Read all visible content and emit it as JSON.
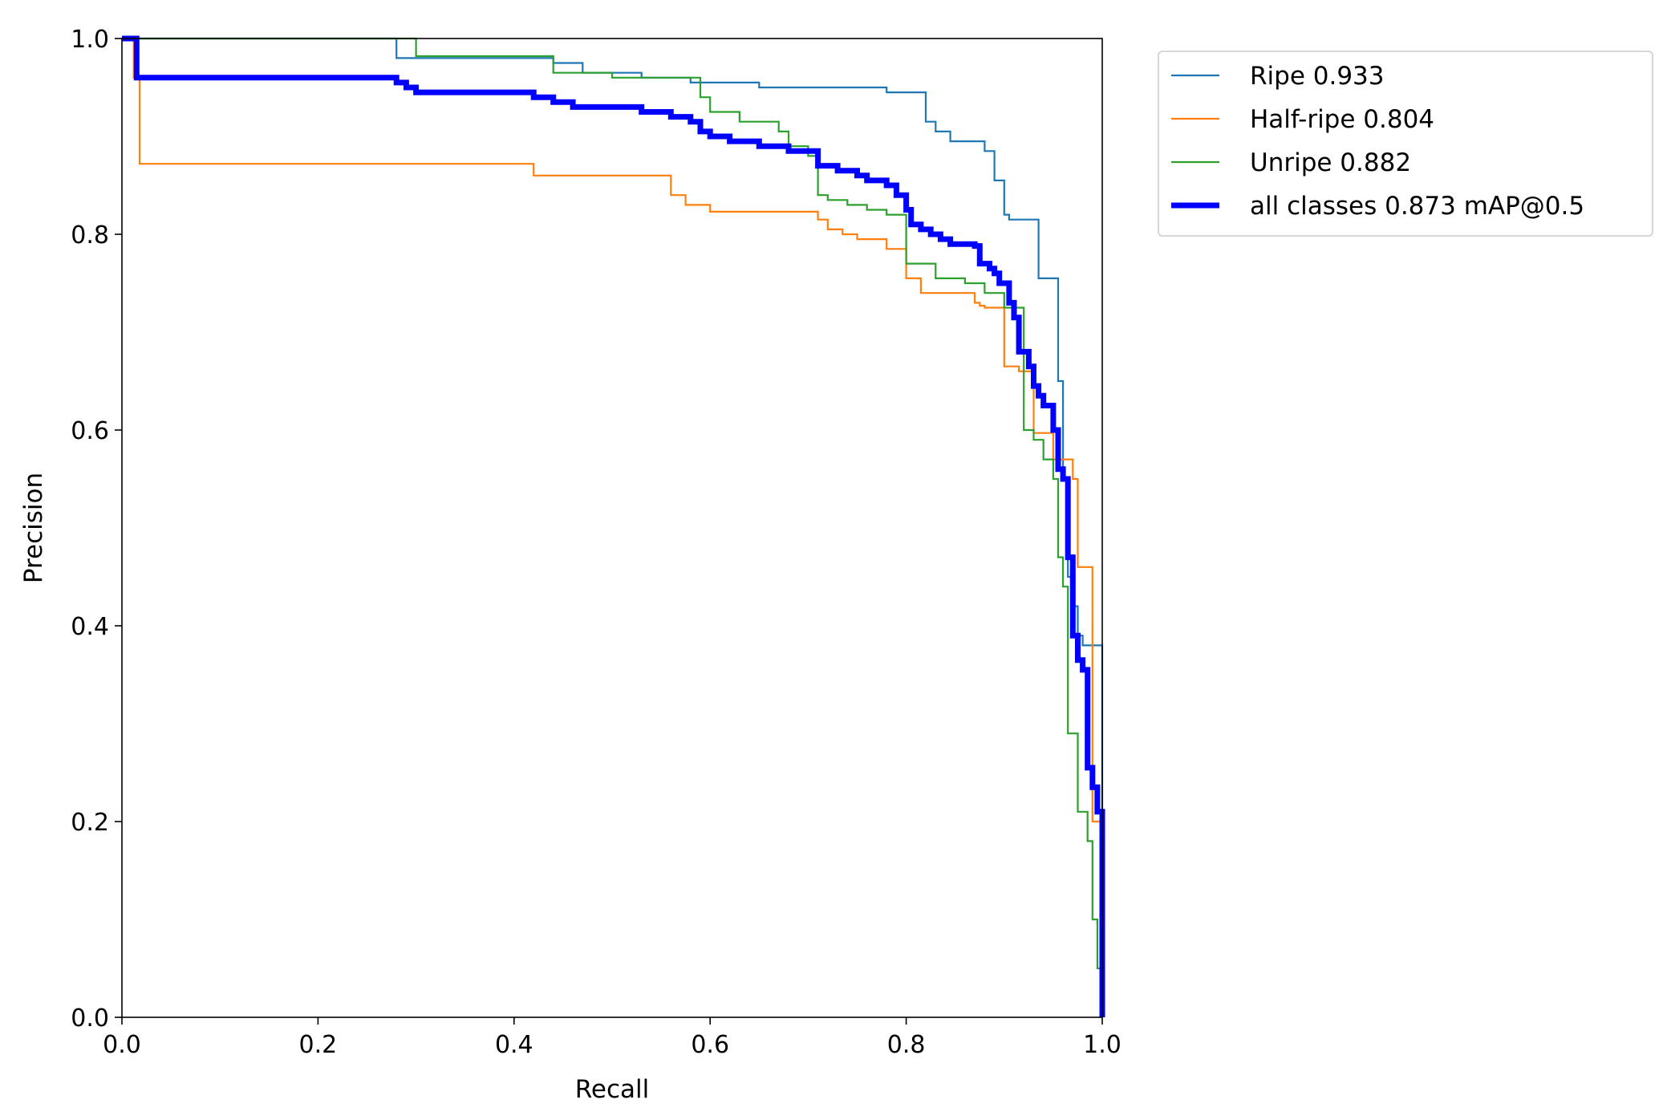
{
  "chart_data": {
    "type": "line",
    "title": "",
    "xlabel": "Recall",
    "ylabel": "Precision",
    "xlim": [
      0,
      1
    ],
    "ylim": [
      0,
      1
    ],
    "xticks": [
      "0.0",
      "0.2",
      "0.4",
      "0.6",
      "0.8",
      "1.0"
    ],
    "yticks": [
      "0.0",
      "0.2",
      "0.4",
      "0.6",
      "0.8",
      "1.0"
    ],
    "grid": false,
    "legend_position": "outside-top-right",
    "series": [
      {
        "name": "Ripe 0.933",
        "color": "#1f77b4",
        "width": "thin",
        "points": [
          [
            0,
            1.0
          ],
          [
            0.28,
            1.0
          ],
          [
            0.28,
            0.98
          ],
          [
            0.44,
            0.98
          ],
          [
            0.44,
            0.975
          ],
          [
            0.47,
            0.975
          ],
          [
            0.47,
            0.965
          ],
          [
            0.53,
            0.965
          ],
          [
            0.53,
            0.96
          ],
          [
            0.58,
            0.96
          ],
          [
            0.58,
            0.955
          ],
          [
            0.65,
            0.955
          ],
          [
            0.65,
            0.95
          ],
          [
            0.78,
            0.95
          ],
          [
            0.78,
            0.945
          ],
          [
            0.82,
            0.945
          ],
          [
            0.82,
            0.915
          ],
          [
            0.83,
            0.915
          ],
          [
            0.83,
            0.905
          ],
          [
            0.845,
            0.905
          ],
          [
            0.845,
            0.895
          ],
          [
            0.88,
            0.895
          ],
          [
            0.88,
            0.885
          ],
          [
            0.89,
            0.885
          ],
          [
            0.89,
            0.855
          ],
          [
            0.9,
            0.855
          ],
          [
            0.9,
            0.82
          ],
          [
            0.905,
            0.82
          ],
          [
            0.905,
            0.815
          ],
          [
            0.935,
            0.815
          ],
          [
            0.935,
            0.755
          ],
          [
            0.955,
            0.755
          ],
          [
            0.955,
            0.65
          ],
          [
            0.96,
            0.65
          ],
          [
            0.96,
            0.55
          ],
          [
            0.965,
            0.55
          ],
          [
            0.965,
            0.45
          ],
          [
            0.97,
            0.45
          ],
          [
            0.97,
            0.42
          ],
          [
            0.975,
            0.42
          ],
          [
            0.975,
            0.39
          ],
          [
            0.98,
            0.39
          ],
          [
            0.98,
            0.38
          ],
          [
            1.0,
            0.38
          ],
          [
            1.0,
            0.0
          ]
        ]
      },
      {
        "name": "Half-ripe 0.804",
        "color": "#ff7f0e",
        "width": "thin",
        "points": [
          [
            0,
            1.0
          ],
          [
            0.012,
            1.0
          ],
          [
            0.012,
            0.96
          ],
          [
            0.018,
            0.96
          ],
          [
            0.018,
            0.872
          ],
          [
            0.42,
            0.872
          ],
          [
            0.42,
            0.86
          ],
          [
            0.56,
            0.86
          ],
          [
            0.56,
            0.84
          ],
          [
            0.575,
            0.84
          ],
          [
            0.575,
            0.83
          ],
          [
            0.6,
            0.83
          ],
          [
            0.6,
            0.823
          ],
          [
            0.71,
            0.823
          ],
          [
            0.71,
            0.815
          ],
          [
            0.72,
            0.815
          ],
          [
            0.72,
            0.805
          ],
          [
            0.735,
            0.805
          ],
          [
            0.735,
            0.8
          ],
          [
            0.75,
            0.8
          ],
          [
            0.75,
            0.795
          ],
          [
            0.78,
            0.795
          ],
          [
            0.78,
            0.785
          ],
          [
            0.8,
            0.785
          ],
          [
            0.8,
            0.755
          ],
          [
            0.815,
            0.755
          ],
          [
            0.815,
            0.74
          ],
          [
            0.87,
            0.74
          ],
          [
            0.87,
            0.73
          ],
          [
            0.875,
            0.73
          ],
          [
            0.875,
            0.727
          ],
          [
            0.88,
            0.727
          ],
          [
            0.88,
            0.725
          ],
          [
            0.9,
            0.725
          ],
          [
            0.9,
            0.665
          ],
          [
            0.915,
            0.665
          ],
          [
            0.915,
            0.66
          ],
          [
            0.93,
            0.66
          ],
          [
            0.93,
            0.597
          ],
          [
            0.95,
            0.597
          ],
          [
            0.95,
            0.57
          ],
          [
            0.97,
            0.57
          ],
          [
            0.97,
            0.55
          ],
          [
            0.975,
            0.55
          ],
          [
            0.975,
            0.46
          ],
          [
            0.99,
            0.46
          ],
          [
            0.99,
            0.2
          ],
          [
            1.0,
            0.2
          ],
          [
            1.0,
            0.0
          ]
        ]
      },
      {
        "name": "Unripe 0.882",
        "color": "#2ca02c",
        "width": "thin",
        "points": [
          [
            0,
            1.0
          ],
          [
            0.3,
            1.0
          ],
          [
            0.3,
            0.982
          ],
          [
            0.44,
            0.982
          ],
          [
            0.44,
            0.965
          ],
          [
            0.5,
            0.965
          ],
          [
            0.5,
            0.96
          ],
          [
            0.59,
            0.96
          ],
          [
            0.59,
            0.94
          ],
          [
            0.6,
            0.94
          ],
          [
            0.6,
            0.925
          ],
          [
            0.63,
            0.925
          ],
          [
            0.63,
            0.915
          ],
          [
            0.67,
            0.915
          ],
          [
            0.67,
            0.905
          ],
          [
            0.68,
            0.905
          ],
          [
            0.68,
            0.89
          ],
          [
            0.7,
            0.89
          ],
          [
            0.7,
            0.88
          ],
          [
            0.71,
            0.88
          ],
          [
            0.71,
            0.84
          ],
          [
            0.72,
            0.84
          ],
          [
            0.72,
            0.835
          ],
          [
            0.74,
            0.835
          ],
          [
            0.74,
            0.83
          ],
          [
            0.76,
            0.83
          ],
          [
            0.76,
            0.825
          ],
          [
            0.78,
            0.825
          ],
          [
            0.78,
            0.82
          ],
          [
            0.8,
            0.82
          ],
          [
            0.8,
            0.805
          ],
          [
            0.8,
            0.77
          ],
          [
            0.83,
            0.77
          ],
          [
            0.83,
            0.755
          ],
          [
            0.86,
            0.755
          ],
          [
            0.86,
            0.75
          ],
          [
            0.88,
            0.75
          ],
          [
            0.88,
            0.74
          ],
          [
            0.9,
            0.74
          ],
          [
            0.9,
            0.725
          ],
          [
            0.92,
            0.725
          ],
          [
            0.92,
            0.6
          ],
          [
            0.93,
            0.6
          ],
          [
            0.93,
            0.59
          ],
          [
            0.94,
            0.59
          ],
          [
            0.94,
            0.57
          ],
          [
            0.95,
            0.57
          ],
          [
            0.95,
            0.55
          ],
          [
            0.955,
            0.55
          ],
          [
            0.955,
            0.47
          ],
          [
            0.96,
            0.47
          ],
          [
            0.96,
            0.44
          ],
          [
            0.965,
            0.44
          ],
          [
            0.965,
            0.29
          ],
          [
            0.975,
            0.29
          ],
          [
            0.975,
            0.21
          ],
          [
            0.985,
            0.21
          ],
          [
            0.985,
            0.18
          ],
          [
            0.99,
            0.18
          ],
          [
            0.99,
            0.1
          ],
          [
            0.995,
            0.1
          ],
          [
            0.995,
            0.05
          ],
          [
            1.0,
            0.05
          ],
          [
            1.0,
            0.0
          ]
        ]
      },
      {
        "name": "all classes 0.873 mAP@0.5",
        "color": "#0000ff",
        "width": "thick",
        "points": [
          [
            0,
            1.0
          ],
          [
            0.015,
            1.0
          ],
          [
            0.015,
            0.96
          ],
          [
            0.28,
            0.96
          ],
          [
            0.28,
            0.955
          ],
          [
            0.29,
            0.955
          ],
          [
            0.29,
            0.95
          ],
          [
            0.3,
            0.95
          ],
          [
            0.3,
            0.945
          ],
          [
            0.42,
            0.945
          ],
          [
            0.42,
            0.94
          ],
          [
            0.44,
            0.94
          ],
          [
            0.44,
            0.935
          ],
          [
            0.46,
            0.935
          ],
          [
            0.46,
            0.93
          ],
          [
            0.53,
            0.93
          ],
          [
            0.53,
            0.925
          ],
          [
            0.56,
            0.925
          ],
          [
            0.56,
            0.92
          ],
          [
            0.58,
            0.92
          ],
          [
            0.58,
            0.915
          ],
          [
            0.59,
            0.915
          ],
          [
            0.59,
            0.905
          ],
          [
            0.6,
            0.905
          ],
          [
            0.6,
            0.9
          ],
          [
            0.62,
            0.9
          ],
          [
            0.62,
            0.895
          ],
          [
            0.65,
            0.895
          ],
          [
            0.65,
            0.89
          ],
          [
            0.68,
            0.89
          ],
          [
            0.68,
            0.885
          ],
          [
            0.71,
            0.885
          ],
          [
            0.71,
            0.87
          ],
          [
            0.73,
            0.87
          ],
          [
            0.73,
            0.865
          ],
          [
            0.75,
            0.865
          ],
          [
            0.75,
            0.86
          ],
          [
            0.76,
            0.86
          ],
          [
            0.76,
            0.855
          ],
          [
            0.78,
            0.855
          ],
          [
            0.78,
            0.85
          ],
          [
            0.79,
            0.85
          ],
          [
            0.79,
            0.84
          ],
          [
            0.8,
            0.84
          ],
          [
            0.8,
            0.825
          ],
          [
            0.805,
            0.825
          ],
          [
            0.805,
            0.81
          ],
          [
            0.815,
            0.81
          ],
          [
            0.815,
            0.805
          ],
          [
            0.825,
            0.805
          ],
          [
            0.825,
            0.8
          ],
          [
            0.835,
            0.8
          ],
          [
            0.835,
            0.795
          ],
          [
            0.845,
            0.795
          ],
          [
            0.845,
            0.79
          ],
          [
            0.87,
            0.79
          ],
          [
            0.87,
            0.788
          ],
          [
            0.875,
            0.788
          ],
          [
            0.875,
            0.77
          ],
          [
            0.885,
            0.77
          ],
          [
            0.885,
            0.765
          ],
          [
            0.89,
            0.765
          ],
          [
            0.89,
            0.76
          ],
          [
            0.895,
            0.76
          ],
          [
            0.895,
            0.75
          ],
          [
            0.905,
            0.75
          ],
          [
            0.905,
            0.73
          ],
          [
            0.91,
            0.73
          ],
          [
            0.91,
            0.715
          ],
          [
            0.915,
            0.715
          ],
          [
            0.915,
            0.68
          ],
          [
            0.925,
            0.68
          ],
          [
            0.925,
            0.665
          ],
          [
            0.93,
            0.665
          ],
          [
            0.93,
            0.645
          ],
          [
            0.935,
            0.645
          ],
          [
            0.935,
            0.635
          ],
          [
            0.94,
            0.635
          ],
          [
            0.94,
            0.625
          ],
          [
            0.95,
            0.625
          ],
          [
            0.95,
            0.6
          ],
          [
            0.955,
            0.6
          ],
          [
            0.955,
            0.56
          ],
          [
            0.96,
            0.56
          ],
          [
            0.96,
            0.55
          ],
          [
            0.965,
            0.55
          ],
          [
            0.965,
            0.47
          ],
          [
            0.97,
            0.47
          ],
          [
            0.97,
            0.39
          ],
          [
            0.975,
            0.39
          ],
          [
            0.975,
            0.365
          ],
          [
            0.98,
            0.365
          ],
          [
            0.98,
            0.355
          ],
          [
            0.985,
            0.355
          ],
          [
            0.985,
            0.255
          ],
          [
            0.99,
            0.255
          ],
          [
            0.99,
            0.235
          ],
          [
            0.995,
            0.235
          ],
          [
            0.995,
            0.21
          ],
          [
            1.0,
            0.21
          ],
          [
            1.0,
            0.0
          ]
        ]
      }
    ]
  }
}
